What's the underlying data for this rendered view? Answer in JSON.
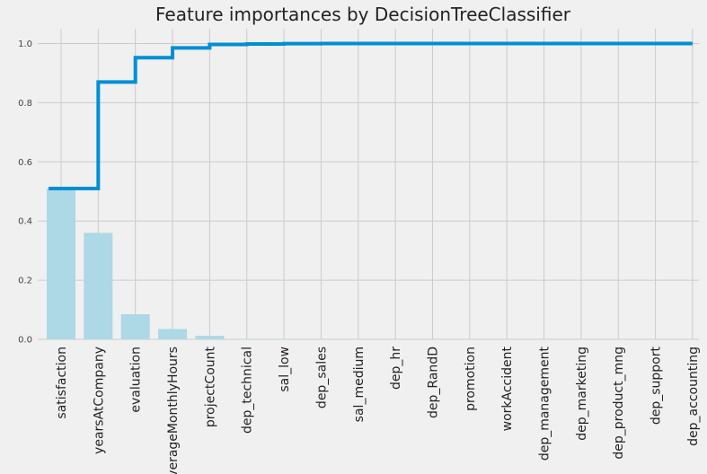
{
  "chart_data": {
    "type": "bar",
    "title": "Feature importances by DecisionTreeClassifier",
    "xlabel": "",
    "ylabel": "",
    "categories": [
      "satisfaction",
      "yearsAtCompany",
      "evaluation",
      "averageMonthlyHours",
      "projectCount",
      "dep_technical",
      "sal_low",
      "dep_sales",
      "sal_medium",
      "dep_hr",
      "dep_RandD",
      "promotion",
      "workAccident",
      "dep_management",
      "dep_marketing",
      "dep_product_mng",
      "dep_support",
      "dep_accounting"
    ],
    "series": [
      {
        "type": "bar",
        "values": [
          0.51,
          0.36,
          0.085,
          0.035,
          0.012,
          0.0015,
          0.001,
          0.0008,
          0.0006,
          0.0005,
          0.0004,
          0.0003,
          0.0003,
          0.0002,
          0.0002,
          0.0001,
          0.0001,
          0.0001
        ],
        "color": "#add8e6"
      },
      {
        "type": "step",
        "values": [
          0.51,
          0.87,
          0.952,
          0.985,
          0.997,
          0.9985,
          0.9995,
          1.0,
          1.0,
          1.0,
          1.0,
          1.0,
          1.0,
          1.0,
          1.0,
          1.0,
          1.0,
          1.0
        ],
        "color": "#008fd5"
      }
    ],
    "ylim": [
      0,
      1.05
    ],
    "yticks": [
      "0.0",
      "0.2",
      "0.4",
      "0.6",
      "0.8",
      "1.0"
    ],
    "ytick_values": [
      0,
      0.2,
      0.4,
      0.6,
      0.8,
      1.0
    ],
    "grid": true,
    "legend": "none"
  }
}
